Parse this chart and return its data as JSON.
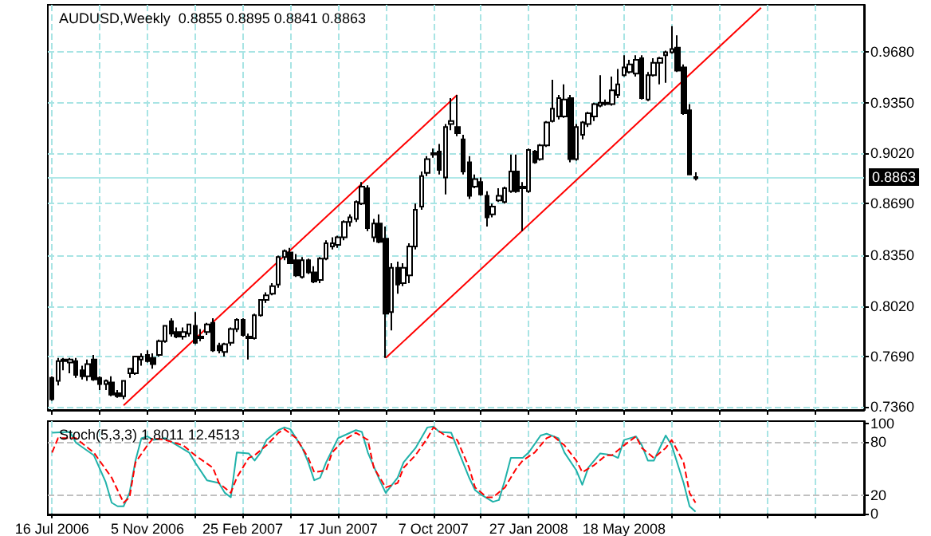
{
  "chart_data": [
    {
      "type": "candlestick",
      "title": "AUDUSD,Weekly  0.8855 0.8895 0.8841 0.8863",
      "color": "#000000",
      "x": [
        "2006-07-16",
        "2006-07-23",
        "2006-07-30",
        "2006-08-06",
        "2006-08-13",
        "2006-08-20",
        "2006-08-27",
        "2006-09-03",
        "2006-09-10",
        "2006-09-17",
        "2006-09-24",
        "2006-10-01",
        "2006-10-08",
        "2006-10-15",
        "2006-10-22",
        "2006-10-29",
        "2006-11-05",
        "2006-11-12",
        "2006-11-19",
        "2006-11-26",
        "2006-12-03",
        "2006-12-10",
        "2006-12-17",
        "2006-12-24",
        "2006-12-31",
        "2007-01-07",
        "2007-01-14",
        "2007-01-21",
        "2007-01-28",
        "2007-02-04",
        "2007-02-11",
        "2007-02-18",
        "2007-02-25",
        "2007-03-04",
        "2007-03-11",
        "2007-03-18",
        "2007-03-25",
        "2007-04-01",
        "2007-04-08",
        "2007-04-15",
        "2007-04-22",
        "2007-04-29",
        "2007-05-06",
        "2007-05-13",
        "2007-05-20",
        "2007-05-27",
        "2007-06-03",
        "2007-06-10",
        "2007-06-17",
        "2007-06-24",
        "2007-07-01",
        "2007-07-08",
        "2007-07-15",
        "2007-07-22",
        "2007-07-29",
        "2007-08-05",
        "2007-08-12",
        "2007-08-19",
        "2007-08-26",
        "2007-09-02",
        "2007-09-09",
        "2007-09-16",
        "2007-09-23",
        "2007-09-30",
        "2007-10-07",
        "2007-10-14",
        "2007-10-21",
        "2007-10-28",
        "2007-11-04",
        "2007-11-11",
        "2007-11-18",
        "2007-11-25",
        "2007-12-02",
        "2007-12-09",
        "2007-12-16",
        "2007-12-23",
        "2007-12-30",
        "2008-01-06",
        "2008-01-13",
        "2008-01-20",
        "2008-01-27",
        "2008-02-03",
        "2008-02-10",
        "2008-02-17",
        "2008-02-24",
        "2008-03-02",
        "2008-03-09",
        "2008-03-16",
        "2008-03-23",
        "2008-03-30",
        "2008-04-06",
        "2008-04-13",
        "2008-04-20",
        "2008-04-27",
        "2008-05-04",
        "2008-05-11",
        "2008-05-18",
        "2008-05-25",
        "2008-06-01",
        "2008-06-08",
        "2008-06-15",
        "2008-06-22",
        "2008-06-29",
        "2008-07-06",
        "2008-07-13",
        "2008-07-20",
        "2008-07-27",
        "2008-08-03",
        "2008-08-10"
      ],
      "ohlc": [
        [
          0.755,
          0.756,
          0.74,
          0.741
        ],
        [
          0.753,
          0.768,
          0.75,
          0.766
        ],
        [
          0.766,
          0.768,
          0.76,
          0.767
        ],
        [
          0.765,
          0.768,
          0.758,
          0.767
        ],
        [
          0.766,
          0.768,
          0.755,
          0.757
        ],
        [
          0.76,
          0.763,
          0.754,
          0.756
        ],
        [
          0.756,
          0.767,
          0.753,
          0.764
        ],
        [
          0.767,
          0.77,
          0.753,
          0.754
        ],
        [
          0.755,
          0.756,
          0.747,
          0.751
        ],
        [
          0.751,
          0.754,
          0.747,
          0.753
        ],
        [
          0.752,
          0.756,
          0.743,
          0.744
        ],
        [
          0.745,
          0.747,
          0.742,
          0.743
        ],
        [
          0.743,
          0.753,
          0.741,
          0.753
        ],
        [
          0.758,
          0.761,
          0.755,
          0.761
        ],
        [
          0.758,
          0.769,
          0.757,
          0.769
        ],
        [
          0.767,
          0.771,
          0.763,
          0.769
        ],
        [
          0.77,
          0.773,
          0.765,
          0.766
        ],
        [
          0.768,
          0.771,
          0.761,
          0.764
        ],
        [
          0.77,
          0.78,
          0.769,
          0.779
        ],
        [
          0.779,
          0.789,
          0.778,
          0.789
        ],
        [
          0.792,
          0.794,
          0.782,
          0.784
        ],
        [
          0.785,
          0.788,
          0.781,
          0.782
        ],
        [
          0.782,
          0.788,
          0.78,
          0.785
        ],
        [
          0.784,
          0.79,
          0.782,
          0.79
        ],
        [
          0.789,
          0.798,
          0.777,
          0.778
        ],
        [
          0.782,
          0.787,
          0.779,
          0.781
        ],
        [
          0.785,
          0.791,
          0.783,
          0.79
        ],
        [
          0.791,
          0.794,
          0.772,
          0.773
        ],
        [
          0.776,
          0.778,
          0.771,
          0.773
        ],
        [
          0.772,
          0.778,
          0.769,
          0.777
        ],
        [
          0.778,
          0.788,
          0.776,
          0.787
        ],
        [
          0.787,
          0.794,
          0.785,
          0.793
        ],
        [
          0.793,
          0.794,
          0.782,
          0.783
        ],
        [
          0.782,
          0.784,
          0.767,
          0.781
        ],
        [
          0.781,
          0.797,
          0.78,
          0.796
        ],
        [
          0.796,
          0.806,
          0.795,
          0.806
        ],
        [
          0.806,
          0.811,
          0.804,
          0.809
        ],
        [
          0.81,
          0.817,
          0.809,
          0.815
        ],
        [
          0.816,
          0.835,
          0.814,
          0.834
        ],
        [
          0.834,
          0.839,
          0.832,
          0.838
        ],
        [
          0.837,
          0.84,
          0.83,
          0.83
        ],
        [
          0.832,
          0.836,
          0.821,
          0.822
        ],
        [
          0.821,
          0.834,
          0.82,
          0.832
        ],
        [
          0.832,
          0.833,
          0.823,
          0.824
        ],
        [
          0.824,
          0.828,
          0.817,
          0.818
        ],
        [
          0.819,
          0.834,
          0.817,
          0.833
        ],
        [
          0.833,
          0.845,
          0.832,
          0.843
        ],
        [
          0.841,
          0.847,
          0.839,
          0.843
        ],
        [
          0.842,
          0.848,
          0.84,
          0.847
        ],
        [
          0.847,
          0.858,
          0.845,
          0.857
        ],
        [
          0.857,
          0.862,
          0.854,
          0.86
        ],
        [
          0.859,
          0.871,
          0.857,
          0.87
        ],
        [
          0.869,
          0.883,
          0.868,
          0.88
        ],
        [
          0.879,
          0.881,
          0.851,
          0.853
        ],
        [
          0.847,
          0.859,
          0.844,
          0.856
        ],
        [
          0.856,
          0.862,
          0.843,
          0.844
        ],
        [
          0.846,
          0.854,
          0.768,
          0.797
        ],
        [
          0.798,
          0.83,
          0.786,
          0.827
        ],
        [
          0.827,
          0.831,
          0.81,
          0.816
        ],
        [
          0.817,
          0.83,
          0.815,
          0.827
        ],
        [
          0.822,
          0.843,
          0.817,
          0.841
        ],
        [
          0.841,
          0.869,
          0.839,
          0.865
        ],
        [
          0.867,
          0.89,
          0.865,
          0.887
        ],
        [
          0.889,
          0.9,
          0.887,
          0.898
        ],
        [
          0.901,
          0.905,
          0.899,
          0.902
        ],
        [
          0.903,
          0.908,
          0.888,
          0.891
        ],
        [
          0.886,
          0.921,
          0.875,
          0.919
        ],
        [
          0.921,
          0.938,
          0.917,
          0.923
        ],
        [
          0.919,
          0.94,
          0.913,
          0.915
        ],
        [
          0.911,
          0.914,
          0.888,
          0.89
        ],
        [
          0.896,
          0.9,
          0.872,
          0.874
        ],
        [
          0.88,
          0.888,
          0.879,
          0.885
        ],
        [
          0.883,
          0.886,
          0.874,
          0.875
        ],
        [
          0.874,
          0.877,
          0.854,
          0.86
        ],
        [
          0.862,
          0.869,
          0.86,
          0.867
        ],
        [
          0.871,
          0.879,
          0.87,
          0.874
        ],
        [
          0.87,
          0.88,
          0.869,
          0.879
        ],
        [
          0.877,
          0.901,
          0.876,
          0.89
        ],
        [
          0.89,
          0.901,
          0.876,
          0.877
        ],
        [
          0.879,
          0.883,
          0.851,
          0.88
        ],
        [
          0.877,
          0.905,
          0.876,
          0.904
        ],
        [
          0.903,
          0.904,
          0.895,
          0.896
        ],
        [
          0.898,
          0.908,
          0.897,
          0.907
        ],
        [
          0.907,
          0.923,
          0.906,
          0.922
        ],
        [
          0.923,
          0.95,
          0.922,
          0.931
        ],
        [
          0.926,
          0.94,
          0.924,
          0.938
        ],
        [
          0.926,
          0.947,
          0.925,
          0.937
        ],
        [
          0.938,
          0.94,
          0.896,
          0.898
        ],
        [
          0.898,
          0.921,
          0.897,
          0.919
        ],
        [
          0.914,
          0.923,
          0.911,
          0.922
        ],
        [
          0.921,
          0.929,
          0.919,
          0.928
        ],
        [
          0.926,
          0.935,
          0.923,
          0.934
        ],
        [
          0.933,
          0.953,
          0.932,
          0.935
        ],
        [
          0.934,
          0.937,
          0.933,
          0.935
        ],
        [
          0.934,
          0.952,
          0.933,
          0.943
        ],
        [
          0.94,
          0.957,
          0.938,
          0.947
        ],
        [
          0.953,
          0.966,
          0.952,
          0.958
        ],
        [
          0.955,
          0.963,
          0.954,
          0.96
        ],
        [
          0.954,
          0.966,
          0.952,
          0.963
        ],
        [
          0.964,
          0.966,
          0.937,
          0.938
        ],
        [
          0.937,
          0.955,
          0.936,
          0.953
        ],
        [
          0.953,
          0.964,
          0.952,
          0.961
        ],
        [
          0.961,
          0.965,
          0.947,
          0.964
        ],
        [
          0.966,
          0.969,
          0.948,
          0.968
        ],
        [
          0.968,
          0.985,
          0.967,
          0.97
        ],
        [
          0.971,
          0.979,
          0.955,
          0.956
        ],
        [
          0.958,
          0.96,
          0.927,
          0.928
        ],
        [
          0.93,
          0.934,
          0.888,
          0.888
        ],
        [
          0.8855,
          0.8895,
          0.8841,
          0.8863
        ]
      ],
      "series": [
        {
          "type": "line",
          "color": "#ff0000",
          "x": [
            "2006-10-08",
            "2007-11-04"
          ],
          "values": [
            0.737,
            0.94
          ]
        },
        {
          "type": "line",
          "color": "#ff0000",
          "x": [
            "2007-08-12",
            "2008-10-26"
          ],
          "values": [
            0.768,
            0.997
          ]
        }
      ],
      "xlim": [
        "2006-07-11",
        "2009-02-24"
      ],
      "xticks": [
        {
          "value": "2006-07-16",
          "label": null
        },
        {
          "value": "2006-09-10",
          "label": null
        },
        {
          "value": "2006-11-05",
          "label": null
        },
        {
          "value": "2006-12-31",
          "label": null
        },
        {
          "value": "2007-02-25",
          "label": null
        },
        {
          "value": "2007-04-22",
          "label": null
        },
        {
          "value": "2007-06-17",
          "label": null
        },
        {
          "value": "2007-08-12",
          "label": null
        },
        {
          "value": "2007-10-07",
          "label": null
        },
        {
          "value": "2007-12-02",
          "label": null
        },
        {
          "value": "2008-01-27",
          "label": null
        },
        {
          "value": "2008-03-23",
          "label": null
        },
        {
          "value": "2008-05-18",
          "label": null
        },
        {
          "value": "2008-07-13",
          "label": null
        },
        {
          "value": "2008-09-07",
          "label": null
        },
        {
          "value": "2008-11-02",
          "label": null
        },
        {
          "value": "2008-12-28",
          "label": null
        }
      ],
      "ylim": [
        0.734,
        0.999
      ],
      "yticks": [
        {
          "value": 0.968,
          "label": "0.9680"
        },
        {
          "value": 0.935,
          "label": "0.9350"
        },
        {
          "value": 0.902,
          "label": "0.9020"
        },
        {
          "value": 0.869,
          "label": "0.8690"
        },
        {
          "value": 0.835,
          "label": "0.8350"
        },
        {
          "value": 0.802,
          "label": "0.8020"
        },
        {
          "value": 0.769,
          "label": "0.7690"
        },
        {
          "value": 0.736,
          "label": "0.7360"
        }
      ],
      "grid": true,
      "tick_labels": "y",
      "ref_lines": [
        {
          "axis": "y",
          "value": 0.8863,
          "label": "0.8863",
          "color": "#b0e8e8",
          "line_style": "solid"
        }
      ]
    },
    {
      "type": "line",
      "title": "Stoch(5,3,3) 1.8011 12.4513",
      "series": [
        {
          "color": "#20b2aa",
          "line_style": "solid",
          "x": [
            "2006-07-16",
            "2006-08-06",
            "2006-08-13",
            "2006-09-03",
            "2006-09-17",
            "2006-09-24",
            "2006-10-01",
            "2006-10-08",
            "2006-10-15",
            "2006-10-22",
            "2006-10-29",
            "2006-11-05",
            "2006-11-12",
            "2006-11-26",
            "2006-12-10",
            "2006-12-24",
            "2006-12-31",
            "2007-01-14",
            "2007-01-28",
            "2007-02-04",
            "2007-02-11",
            "2007-02-18",
            "2007-03-04",
            "2007-03-11",
            "2007-03-18",
            "2007-03-25",
            "2007-04-08",
            "2007-04-15",
            "2007-04-22",
            "2007-05-06",
            "2007-05-13",
            "2007-05-20",
            "2007-05-27",
            "2007-06-03",
            "2007-06-17",
            "2007-06-24",
            "2007-07-08",
            "2007-07-15",
            "2007-07-22",
            "2007-08-05",
            "2007-08-12",
            "2007-08-26",
            "2007-09-02",
            "2007-09-16",
            "2007-09-30",
            "2007-10-07",
            "2007-10-14",
            "2007-10-28",
            "2007-11-04",
            "2007-11-18",
            "2007-11-25",
            "2007-12-02",
            "2007-12-16",
            "2007-12-23",
            "2007-12-30",
            "2008-01-06",
            "2008-01-20",
            "2008-01-27",
            "2008-02-10",
            "2008-02-17",
            "2008-03-02",
            "2008-03-09",
            "2008-03-23",
            "2008-03-30",
            "2008-04-06",
            "2008-04-20",
            "2008-05-04",
            "2008-05-11",
            "2008-05-18",
            "2008-06-01",
            "2008-06-08",
            "2008-06-15",
            "2008-06-22",
            "2008-06-29",
            "2008-07-06",
            "2008-07-13",
            "2008-07-27",
            "2008-08-03",
            "2008-08-10"
          ],
          "values": [
            90,
            91,
            79,
            65,
            35,
            12,
            8,
            8,
            23,
            59,
            84,
            86,
            82,
            84,
            76,
            68,
            57,
            37,
            34,
            23,
            18,
            68,
            67,
            59,
            68,
            82,
            93,
            96,
            94,
            73,
            57,
            37,
            40,
            57,
            84,
            87,
            93,
            91,
            68,
            37,
            23,
            40,
            57,
            73,
            96,
            97,
            91,
            90,
            73,
            40,
            26,
            21,
            13,
            15,
            37,
            62,
            62,
            68,
            87,
            89,
            84,
            68,
            48,
            32,
            51,
            67,
            65,
            62,
            82,
            86,
            76,
            59,
            59,
            73,
            87,
            76,
            34,
            8,
            2
          ]
        },
        {
          "color": "#ff0000",
          "line_style": "dashed",
          "x": [
            "2006-07-16",
            "2006-07-23",
            "2006-08-13",
            "2006-09-03",
            "2006-09-24",
            "2006-10-08",
            "2006-10-15",
            "2006-10-22",
            "2006-11-05",
            "2006-11-12",
            "2006-11-26",
            "2006-12-17",
            "2006-12-31",
            "2007-01-21",
            "2007-01-28",
            "2007-02-11",
            "2007-02-18",
            "2007-03-04",
            "2007-03-11",
            "2007-03-25",
            "2007-04-08",
            "2007-04-15",
            "2007-04-29",
            "2007-05-13",
            "2007-05-20",
            "2007-06-03",
            "2007-06-10",
            "2007-06-24",
            "2007-07-08",
            "2007-07-22",
            "2007-07-29",
            "2007-08-12",
            "2007-08-26",
            "2007-09-02",
            "2007-09-16",
            "2007-09-30",
            "2007-10-07",
            "2007-10-21",
            "2007-11-04",
            "2007-11-18",
            "2007-11-25",
            "2007-12-09",
            "2007-12-16",
            "2007-12-30",
            "2008-01-13",
            "2008-01-20",
            "2008-02-03",
            "2008-02-17",
            "2008-02-24",
            "2008-03-09",
            "2008-03-23",
            "2008-03-30",
            "2008-04-13",
            "2008-04-27",
            "2008-05-04",
            "2008-05-18",
            "2008-06-01",
            "2008-06-08",
            "2008-06-22",
            "2008-07-06",
            "2008-07-13",
            "2008-07-27",
            "2008-08-03",
            "2008-08-10"
          ],
          "values": [
            68,
            84,
            84,
            68,
            40,
            12,
            18,
            57,
            76,
            84,
            82,
            76,
            65,
            51,
            34,
            23,
            40,
            62,
            65,
            76,
            90,
            94,
            84,
            62,
            46,
            48,
            68,
            82,
            90,
            82,
            51,
            29,
            34,
            51,
            65,
            84,
            96,
            87,
            82,
            51,
            29,
            18,
            18,
            29,
            51,
            59,
            68,
            84,
            87,
            76,
            59,
            46,
            54,
            65,
            65,
            76,
            86,
            73,
            62,
            73,
            82,
            57,
            23,
            12
          ]
        }
      ],
      "xlim": [
        "2006-07-11",
        "2009-02-24"
      ],
      "xticks": [
        {
          "value": "2006-07-16",
          "label": "16 Jul 2006"
        },
        {
          "value": "2006-09-10",
          "label": null
        },
        {
          "value": "2006-11-05",
          "label": "5 Nov 2006"
        },
        {
          "value": "2006-12-31",
          "label": null
        },
        {
          "value": "2007-02-25",
          "label": "25 Feb 2007"
        },
        {
          "value": "2007-04-22",
          "label": null
        },
        {
          "value": "2007-06-17",
          "label": "17 Jun 2007"
        },
        {
          "value": "2007-08-12",
          "label": null
        },
        {
          "value": "2007-10-07",
          "label": "7 Oct 2007"
        },
        {
          "value": "2007-12-02",
          "label": null
        },
        {
          "value": "2008-01-27",
          "label": "27 Jan 2008"
        },
        {
          "value": "2008-03-23",
          "label": null
        },
        {
          "value": "2008-05-18",
          "label": "18 May 2008"
        },
        {
          "value": "2008-07-13",
          "label": null
        },
        {
          "value": "2008-09-07",
          "label": null
        },
        {
          "value": "2008-11-02",
          "label": null
        },
        {
          "value": "2008-12-28",
          "label": null
        }
      ],
      "ylim": [
        -2,
        103
      ],
      "yticks": [
        100,
        80,
        20,
        0
      ],
      "grid": "x",
      "ref_lines": [
        {
          "axis": "y",
          "value": 80,
          "color": "#c0c0c0",
          "line_style": "dashed"
        },
        {
          "axis": "y",
          "value": 20,
          "color": "#c0c0c0",
          "line_style": "dashed"
        }
      ]
    }
  ]
}
